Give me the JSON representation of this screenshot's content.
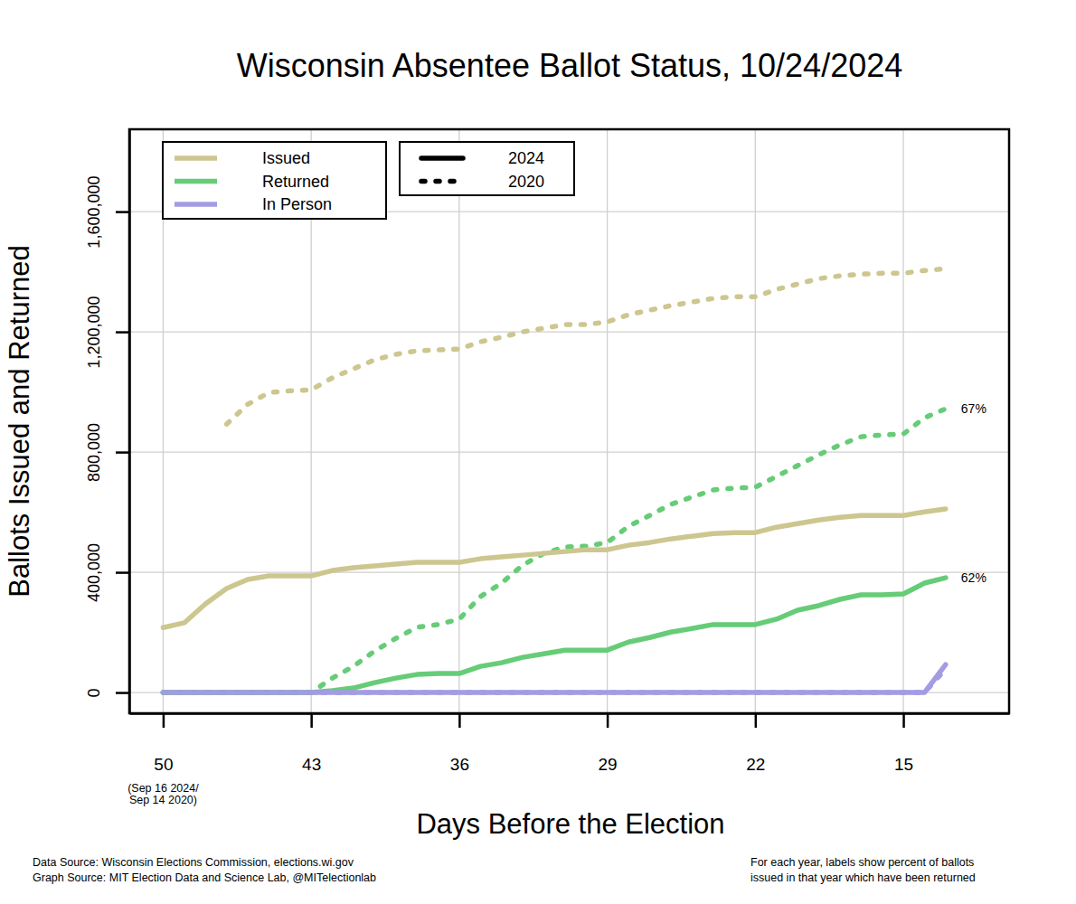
{
  "chart_data": {
    "type": "line",
    "title": "Wisconsin Absentee Ballot Status, 10/24/2024",
    "x_label": "Days Before the Election",
    "y_label": "Ballots Issued and Returned",
    "x": [
      50,
      49,
      48,
      47,
      46,
      45,
      44,
      43,
      42,
      41,
      40,
      39,
      38,
      37,
      36,
      35,
      34,
      33,
      32,
      31,
      30,
      29,
      28,
      27,
      26,
      25,
      24,
      23,
      22,
      21,
      20,
      19,
      18,
      17,
      16,
      15,
      14,
      13
    ],
    "xlim": [
      51.6,
      10
    ],
    "xticks": [
      50,
      43,
      36,
      29,
      22,
      15
    ],
    "ylim": [
      -69000,
      1874000
    ],
    "yticks": [
      0,
      {
        "value": 400000,
        "label": "400,000"
      },
      {
        "value": 800000,
        "label": "800,000"
      },
      {
        "value": 1200000,
        "label": "1,200,000"
      },
      {
        "value": 1600000,
        "label": "1,600,000"
      }
    ],
    "grid": true,
    "legend": "top-left",
    "annotations": [
      {
        "x": 50,
        "text": [
          "(Sep 16 2024/",
          "Sep 14 2020)"
        ]
      }
    ],
    "source": [
      "Data Source: Wisconsin Elections Commission, elections.wi.gov",
      "Graph Source: MIT Election Data and Science Lab, @MITelectionlab"
    ],
    "note": [
      "For each year, labels show percent of ballots",
      "issued in that year which have been returned"
    ],
    "series": [
      {
        "name": "Issued",
        "group": "2024",
        "color": "#cdc68f",
        "line_style": "solid",
        "values": [
          216000,
          232000,
          295000,
          346000,
          376000,
          388000,
          388000,
          388000,
          406000,
          415000,
          421000,
          427000,
          433000,
          433000,
          433000,
          445000,
          451000,
          457000,
          463000,
          469000,
          475000,
          475000,
          490000,
          499000,
          511000,
          520000,
          529000,
          532000,
          532000,
          550000,
          562000,
          574000,
          583000,
          589000,
          589000,
          589000,
          601000,
          611000
        ]
      },
      {
        "name": "Issued",
        "group": "2020",
        "color": "#cdc68f",
        "line_style": "dashed",
        "values": [
          null,
          null,
          null,
          893000,
          959000,
          998000,
          1004000,
          1007000,
          1047000,
          1077000,
          1107000,
          1125000,
          1137000,
          1140000,
          1143000,
          1167000,
          1182000,
          1200000,
          1212000,
          1224000,
          1224000,
          1233000,
          1257000,
          1272000,
          1287000,
          1299000,
          1311000,
          1317000,
          1317000,
          1341000,
          1359000,
          1377000,
          1386000,
          1392000,
          1395000,
          1395000,
          1404000,
          1410000
        ]
      },
      {
        "name": "Returned",
        "group": "2024",
        "color": "#66cc77",
        "line_style": "solid",
        "end_label": "62%",
        "values": [
          0,
          0,
          0,
          0,
          0,
          0,
          0,
          0,
          6000,
          15000,
          33000,
          48000,
          60000,
          63000,
          63000,
          87000,
          99000,
          117000,
          129000,
          141000,
          141000,
          141000,
          168000,
          183000,
          201000,
          213000,
          226000,
          226000,
          226000,
          244000,
          274000,
          289000,
          310000,
          325000,
          325000,
          328000,
          364000,
          382000
        ]
      },
      {
        "name": "Returned",
        "group": "2020",
        "color": "#66cc77",
        "line_style": "dashed",
        "end_label": "67%",
        "values": [
          0,
          0,
          0,
          0,
          0,
          0,
          0,
          0,
          48000,
          87000,
          138000,
          180000,
          217000,
          226000,
          244000,
          319000,
          364000,
          424000,
          463000,
          484000,
          487000,
          499000,
          553000,
          589000,
          626000,
          650000,
          674000,
          680000,
          683000,
          719000,
          755000,
          791000,
          824000,
          851000,
          857000,
          860000,
          914000,
          944000
        ]
      },
      {
        "name": "In Person",
        "group": "2024",
        "color": "#a39be3",
        "line_style": "solid",
        "values": [
          0,
          0,
          0,
          0,
          0,
          0,
          0,
          0,
          0,
          0,
          0,
          0,
          0,
          0,
          0,
          0,
          0,
          0,
          0,
          0,
          0,
          0,
          0,
          0,
          0,
          0,
          0,
          0,
          0,
          0,
          0,
          0,
          0,
          0,
          0,
          0,
          0,
          93000
        ]
      },
      {
        "name": "In Person",
        "group": "2020",
        "color": "#a39be3",
        "line_style": "dashed",
        "values": [
          0,
          0,
          0,
          0,
          0,
          0,
          0,
          0,
          0,
          0,
          0,
          0,
          0,
          0,
          0,
          0,
          0,
          0,
          0,
          0,
          0,
          0,
          0,
          0,
          0,
          0,
          0,
          0,
          0,
          0,
          0,
          0,
          0,
          0,
          0,
          0,
          0,
          78000
        ]
      }
    ]
  }
}
